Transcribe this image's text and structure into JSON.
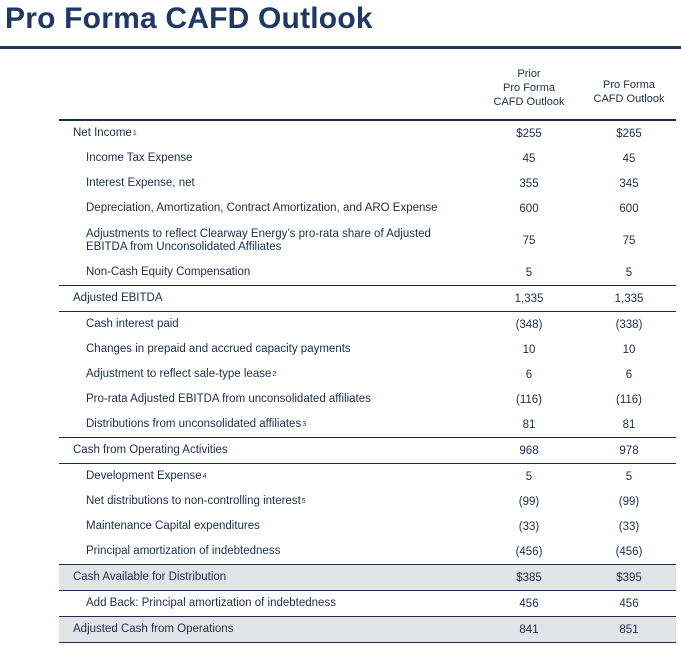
{
  "page_title": "Pro Forma CAFD Outlook",
  "columns": {
    "prior": [
      "Prior",
      "Pro Forma",
      "CAFD Outlook"
    ],
    "current": [
      "Pro Forma",
      "CAFD Outlook"
    ]
  },
  "rows": [
    {
      "label": "Net Income",
      "sup": "1",
      "prior": "$255",
      "current": "$265"
    },
    {
      "label": "Income Tax Expense",
      "sup": "",
      "prior": "45",
      "current": "45"
    },
    {
      "label": "Interest Expense, net",
      "sup": "",
      "prior": "355",
      "current": "345"
    },
    {
      "label": "Depreciation, Amortization, Contract Amortization, and ARO Expense",
      "sup": "",
      "prior": "600",
      "current": "600"
    },
    {
      "label": "Adjustments to reflect Clearway Energy’s pro-rata share of Adjusted EBITDA from Unconsolidated Affiliates",
      "sup": "",
      "prior": "75",
      "current": "75"
    },
    {
      "label": "Non-Cash Equity Compensation",
      "sup": "",
      "prior": "5",
      "current": "5"
    },
    {
      "label": "Adjusted EBITDA",
      "sup": "",
      "prior": "1,335",
      "current": "1,335"
    },
    {
      "label": "Cash interest paid",
      "sup": "",
      "prior": "(348)",
      "current": "(338)"
    },
    {
      "label": "Changes in prepaid and accrued capacity payments",
      "sup": "",
      "prior": "10",
      "current": "10"
    },
    {
      "label": "Adjustment to reflect sale-type lease",
      "sup": "2",
      "prior": "6",
      "current": "6"
    },
    {
      "label": "Pro-rata Adjusted EBITDA from unconsolidated affiliates",
      "sup": "",
      "prior": "(116)",
      "current": "(116)"
    },
    {
      "label": "Distributions from unconsolidated affiliates",
      "sup": "3",
      "prior": "81",
      "current": "81"
    },
    {
      "label": "Cash from Operating Activities",
      "sup": "",
      "prior": "968",
      "current": "978"
    },
    {
      "label": "Development Expense",
      "sup": "4",
      "prior": "5",
      "current": "5"
    },
    {
      "label": "Net distributions to non-controlling interest",
      "sup": "5",
      "prior": "(99)",
      "current": "(99)"
    },
    {
      "label": "Maintenance Capital expenditures",
      "sup": "",
      "prior": "(33)",
      "current": "(33)"
    },
    {
      "label": "Principal amortization of indebtedness",
      "sup": "",
      "prior": "(456)",
      "current": "(456)"
    },
    {
      "label": "Cash Available for Distribution",
      "sup": "",
      "prior": "$385",
      "current": "$395"
    },
    {
      "label": "Add Back: Principal amortization of indebtedness",
      "sup": "",
      "prior": "456",
      "current": "456"
    },
    {
      "label": "Adjusted Cash from Operations",
      "sup": "",
      "prior": "841",
      "current": "851"
    }
  ]
}
